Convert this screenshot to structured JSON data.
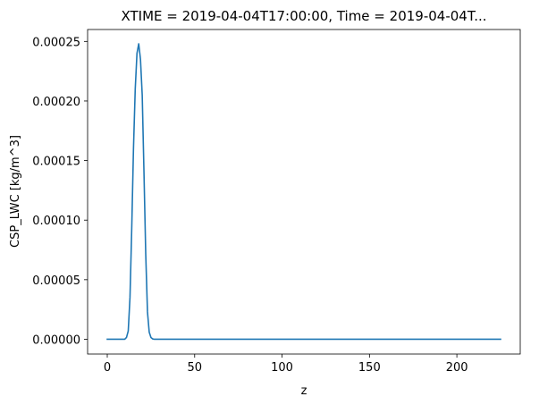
{
  "chart_data": {
    "type": "line",
    "title": "XTIME = 2019-04-04T17:00:00, Time = 2019-04-04T...",
    "xlabel": "z",
    "ylabel": "CSP_LWC [kg/m^3]",
    "xlim": [
      -11.25,
      236.25
    ],
    "ylim": [
      -1.24e-05,
      0.00026
    ],
    "x_ticks": [
      0,
      50,
      100,
      150,
      200
    ],
    "x_tick_labels": [
      "0",
      "50",
      "100",
      "150",
      "200"
    ],
    "y_ticks": [
      0,
      5e-05,
      0.0001,
      0.00015,
      0.0002,
      0.00025
    ],
    "y_tick_labels": [
      "0.00000",
      "0.00005",
      "0.00010",
      "0.00015",
      "0.00020",
      "0.00025"
    ],
    "grid": false,
    "legend": "none",
    "line_color": "#1f77b4",
    "series": [
      {
        "x": [
          0,
          10,
          11,
          12,
          13,
          14,
          15,
          16,
          17,
          18,
          19,
          20,
          21,
          22,
          23,
          24,
          25,
          26,
          27,
          28,
          30,
          40,
          60,
          100,
          150,
          200,
          225
        ],
        "values": [
          0,
          0,
          1.5e-06,
          7e-06,
          3.5e-05,
          9.3e-05,
          0.00016,
          0.00021,
          0.00024,
          0.000248,
          0.000235,
          0.000205,
          0.00014,
          7.2e-05,
          2.3e-05,
          6e-06,
          1.5e-06,
          3e-07,
          0,
          0,
          0,
          0,
          0,
          0,
          0,
          0,
          0
        ]
      }
    ]
  }
}
